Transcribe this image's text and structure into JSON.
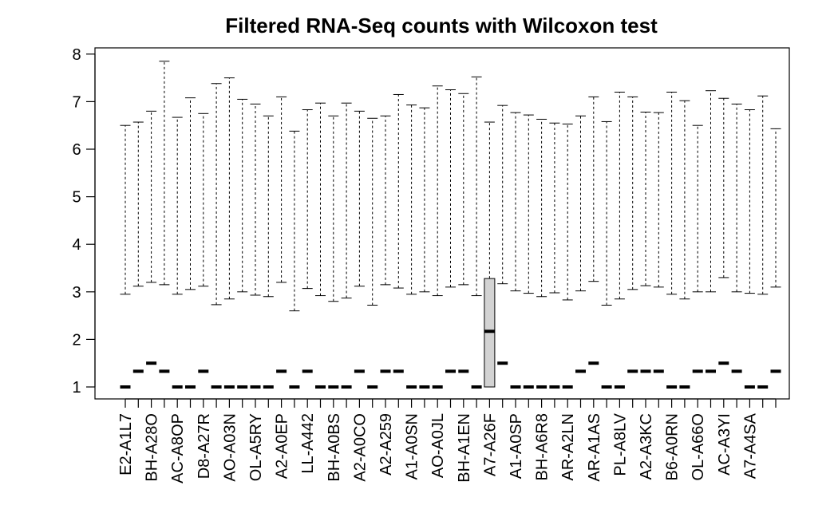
{
  "chart_data": {
    "type": "boxplot",
    "title": "Filtered RNA-Seq counts with Wilcoxon test",
    "xlabel": "",
    "ylabel": "",
    "ylim": [
      0.6,
      8.15
    ],
    "yticks": [
      1,
      2,
      3,
      4,
      5,
      6,
      7,
      8
    ],
    "grid": false,
    "box_fill": "#d3d3d3",
    "labeled_categories": [
      "E2-A1L7",
      "BH-A28O",
      "AC-A8OP",
      "D8-A27R",
      "AO-A03N",
      "OL-A5RY",
      "A2-A0EP",
      "LL-A442",
      "BH-A0BS",
      "A2-A0CO",
      "A2-A259",
      "A1-A0SN",
      "AO-A0JL",
      "BH-A1EN",
      "A7-A26F",
      "A1-A0SP",
      "BH-A6R8",
      "AR-A2LN",
      "AR-A1AS",
      "PL-A8LV",
      "A2-A3KC",
      "B6-A0RN",
      "OL-A66O",
      "AC-A3YI",
      "A7-A4SA"
    ],
    "series": [
      {
        "median": 1.0,
        "q1": 1.0,
        "q3": 1.0,
        "whisker_low": 1.0,
        "whisker_high": 1.0,
        "outlier_low": 2.95,
        "outlier_high": 6.5
      },
      {
        "median": 1.33,
        "q1": 1.33,
        "q3": 1.33,
        "whisker_low": 1.33,
        "whisker_high": 1.33,
        "outlier_low": 3.12,
        "outlier_high": 6.57
      },
      {
        "median": 1.5,
        "q1": 1.5,
        "q3": 1.5,
        "whisker_low": 1.5,
        "whisker_high": 1.5,
        "outlier_low": 3.2,
        "outlier_high": 6.8
      },
      {
        "median": 1.33,
        "q1": 1.33,
        "q3": 1.33,
        "whisker_low": 1.33,
        "whisker_high": 1.33,
        "outlier_low": 3.15,
        "outlier_high": 7.85
      },
      {
        "median": 1.0,
        "q1": 1.0,
        "q3": 1.0,
        "whisker_low": 1.0,
        "whisker_high": 1.0,
        "outlier_low": 2.95,
        "outlier_high": 6.67
      },
      {
        "median": 1.0,
        "q1": 1.0,
        "q3": 1.0,
        "whisker_low": 1.0,
        "whisker_high": 1.0,
        "outlier_low": 3.05,
        "outlier_high": 7.08
      },
      {
        "median": 1.33,
        "q1": 1.33,
        "q3": 1.33,
        "whisker_low": 1.33,
        "whisker_high": 1.33,
        "outlier_low": 3.12,
        "outlier_high": 6.75
      },
      {
        "median": 1.0,
        "q1": 1.0,
        "q3": 1.0,
        "whisker_low": 1.0,
        "whisker_high": 1.0,
        "outlier_low": 2.73,
        "outlier_high": 7.38
      },
      {
        "median": 1.0,
        "q1": 1.0,
        "q3": 1.0,
        "whisker_low": 1.0,
        "whisker_high": 1.0,
        "outlier_low": 2.85,
        "outlier_high": 7.5
      },
      {
        "median": 1.0,
        "q1": 1.0,
        "q3": 1.0,
        "whisker_low": 1.0,
        "whisker_high": 1.0,
        "outlier_low": 3.0,
        "outlier_high": 7.05
      },
      {
        "median": 1.0,
        "q1": 1.0,
        "q3": 1.0,
        "whisker_low": 1.0,
        "whisker_high": 1.0,
        "outlier_low": 2.93,
        "outlier_high": 6.95
      },
      {
        "median": 1.0,
        "q1": 1.0,
        "q3": 1.0,
        "whisker_low": 1.0,
        "whisker_high": 1.0,
        "outlier_low": 2.9,
        "outlier_high": 6.7
      },
      {
        "median": 1.33,
        "q1": 1.33,
        "q3": 1.33,
        "whisker_low": 1.33,
        "whisker_high": 1.33,
        "outlier_low": 3.2,
        "outlier_high": 7.1
      },
      {
        "median": 1.0,
        "q1": 1.0,
        "q3": 1.0,
        "whisker_low": 1.0,
        "whisker_high": 1.0,
        "outlier_low": 2.6,
        "outlier_high": 6.38
      },
      {
        "median": 1.33,
        "q1": 1.33,
        "q3": 1.33,
        "whisker_low": 1.33,
        "whisker_high": 1.33,
        "outlier_low": 3.07,
        "outlier_high": 6.83
      },
      {
        "median": 1.0,
        "q1": 1.0,
        "q3": 1.0,
        "whisker_low": 1.0,
        "whisker_high": 1.0,
        "outlier_low": 2.92,
        "outlier_high": 6.97
      },
      {
        "median": 1.0,
        "q1": 1.0,
        "q3": 1.0,
        "whisker_low": 1.0,
        "whisker_high": 1.0,
        "outlier_low": 2.8,
        "outlier_high": 6.7
      },
      {
        "median": 1.0,
        "q1": 1.0,
        "q3": 1.0,
        "whisker_low": 1.0,
        "whisker_high": 1.0,
        "outlier_low": 2.87,
        "outlier_high": 6.97
      },
      {
        "median": 1.33,
        "q1": 1.33,
        "q3": 1.33,
        "whisker_low": 1.33,
        "whisker_high": 1.33,
        "outlier_low": 3.12,
        "outlier_high": 6.8
      },
      {
        "median": 1.0,
        "q1": 1.0,
        "q3": 1.0,
        "whisker_low": 1.0,
        "whisker_high": 1.0,
        "outlier_low": 2.72,
        "outlier_high": 6.65
      },
      {
        "median": 1.33,
        "q1": 1.33,
        "q3": 1.33,
        "whisker_low": 1.33,
        "whisker_high": 1.33,
        "outlier_low": 3.15,
        "outlier_high": 6.7
      },
      {
        "median": 1.33,
        "q1": 1.33,
        "q3": 1.33,
        "whisker_low": 1.33,
        "whisker_high": 1.33,
        "outlier_low": 3.08,
        "outlier_high": 7.15
      },
      {
        "median": 1.0,
        "q1": 1.0,
        "q3": 1.0,
        "whisker_low": 1.0,
        "whisker_high": 1.0,
        "outlier_low": 2.95,
        "outlier_high": 6.93
      },
      {
        "median": 1.0,
        "q1": 1.0,
        "q3": 1.0,
        "whisker_low": 1.0,
        "whisker_high": 1.0,
        "outlier_low": 3.0,
        "outlier_high": 6.87
      },
      {
        "median": 1.0,
        "q1": 1.0,
        "q3": 1.0,
        "whisker_low": 1.0,
        "whisker_high": 1.0,
        "outlier_low": 2.92,
        "outlier_high": 7.33
      },
      {
        "median": 1.33,
        "q1": 1.33,
        "q3": 1.33,
        "whisker_low": 1.33,
        "whisker_high": 1.33,
        "outlier_low": 3.1,
        "outlier_high": 7.25
      },
      {
        "median": 1.33,
        "q1": 1.33,
        "q3": 1.33,
        "whisker_low": 1.33,
        "whisker_high": 1.33,
        "outlier_low": 3.15,
        "outlier_high": 7.17
      },
      {
        "median": 1.0,
        "q1": 1.0,
        "q3": 1.0,
        "whisker_low": 1.0,
        "whisker_high": 1.0,
        "outlier_low": 2.92,
        "outlier_high": 7.52
      },
      {
        "median": 2.17,
        "q1": 1.0,
        "q3": 3.28,
        "whisker_low": 1.0,
        "whisker_high": 6.57
      },
      {
        "median": 1.5,
        "q1": 1.5,
        "q3": 1.5,
        "whisker_low": 1.5,
        "whisker_high": 1.5,
        "outlier_low": 3.17,
        "outlier_high": 6.92
      },
      {
        "median": 1.0,
        "q1": 1.0,
        "q3": 1.0,
        "whisker_low": 1.0,
        "whisker_high": 1.0,
        "outlier_low": 3.02,
        "outlier_high": 6.77
      },
      {
        "median": 1.0,
        "q1": 1.0,
        "q3": 1.0,
        "whisker_low": 1.0,
        "whisker_high": 1.0,
        "outlier_low": 2.97,
        "outlier_high": 6.72
      },
      {
        "median": 1.0,
        "q1": 1.0,
        "q3": 1.0,
        "whisker_low": 1.0,
        "whisker_high": 1.0,
        "outlier_low": 2.9,
        "outlier_high": 6.63
      },
      {
        "median": 1.0,
        "q1": 1.0,
        "q3": 1.0,
        "whisker_low": 1.0,
        "whisker_high": 1.0,
        "outlier_low": 2.98,
        "outlier_high": 6.55
      },
      {
        "median": 1.0,
        "q1": 1.0,
        "q3": 1.0,
        "whisker_low": 1.0,
        "whisker_high": 1.0,
        "outlier_low": 2.83,
        "outlier_high": 6.53
      },
      {
        "median": 1.33,
        "q1": 1.33,
        "q3": 1.33,
        "whisker_low": 1.33,
        "whisker_high": 1.33,
        "outlier_low": 3.02,
        "outlier_high": 6.7
      },
      {
        "median": 1.5,
        "q1": 1.5,
        "q3": 1.5,
        "whisker_low": 1.5,
        "whisker_high": 1.5,
        "outlier_low": 3.22,
        "outlier_high": 7.1
      },
      {
        "median": 1.0,
        "q1": 1.0,
        "q3": 1.0,
        "whisker_low": 1.0,
        "whisker_high": 1.0,
        "outlier_low": 2.72,
        "outlier_high": 6.58
      },
      {
        "median": 1.0,
        "q1": 1.0,
        "q3": 1.0,
        "whisker_low": 1.0,
        "whisker_high": 1.0,
        "outlier_low": 2.85,
        "outlier_high": 7.2
      },
      {
        "median": 1.33,
        "q1": 1.33,
        "q3": 1.33,
        "whisker_low": 1.33,
        "whisker_high": 1.33,
        "outlier_low": 3.05,
        "outlier_high": 7.1
      },
      {
        "median": 1.33,
        "q1": 1.33,
        "q3": 1.33,
        "whisker_low": 1.33,
        "whisker_high": 1.33,
        "outlier_low": 3.13,
        "outlier_high": 6.78
      },
      {
        "median": 1.33,
        "q1": 1.33,
        "q3": 1.33,
        "whisker_low": 1.33,
        "whisker_high": 1.33,
        "outlier_low": 3.1,
        "outlier_high": 6.77
      },
      {
        "median": 1.0,
        "q1": 1.0,
        "q3": 1.0,
        "whisker_low": 1.0,
        "whisker_high": 1.0,
        "outlier_low": 2.95,
        "outlier_high": 7.2
      },
      {
        "median": 1.0,
        "q1": 1.0,
        "q3": 1.0,
        "whisker_low": 1.0,
        "whisker_high": 1.0,
        "outlier_low": 2.85,
        "outlier_high": 7.02
      },
      {
        "median": 1.33,
        "q1": 1.33,
        "q3": 1.33,
        "whisker_low": 1.33,
        "whisker_high": 1.33,
        "outlier_low": 3.0,
        "outlier_high": 6.5
      },
      {
        "median": 1.33,
        "q1": 1.33,
        "q3": 1.33,
        "whisker_low": 1.33,
        "whisker_high": 1.33,
        "outlier_low": 3.0,
        "outlier_high": 7.23
      },
      {
        "median": 1.5,
        "q1": 1.5,
        "q3": 1.5,
        "whisker_low": 1.5,
        "whisker_high": 1.5,
        "outlier_low": 3.3,
        "outlier_high": 7.07
      },
      {
        "median": 1.33,
        "q1": 1.33,
        "q3": 1.33,
        "whisker_low": 1.33,
        "whisker_high": 1.33,
        "outlier_low": 3.0,
        "outlier_high": 6.95
      },
      {
        "median": 1.0,
        "q1": 1.0,
        "q3": 1.0,
        "whisker_low": 1.0,
        "whisker_high": 1.0,
        "outlier_low": 2.97,
        "outlier_high": 6.83
      },
      {
        "median": 1.0,
        "q1": 1.0,
        "q3": 1.0,
        "whisker_low": 1.0,
        "whisker_high": 1.0,
        "outlier_low": 2.95,
        "outlier_high": 7.12
      },
      {
        "median": 1.33,
        "q1": 1.33,
        "q3": 1.33,
        "whisker_low": 1.33,
        "whisker_high": 1.33,
        "outlier_low": 3.1,
        "outlier_high": 6.43
      }
    ]
  }
}
